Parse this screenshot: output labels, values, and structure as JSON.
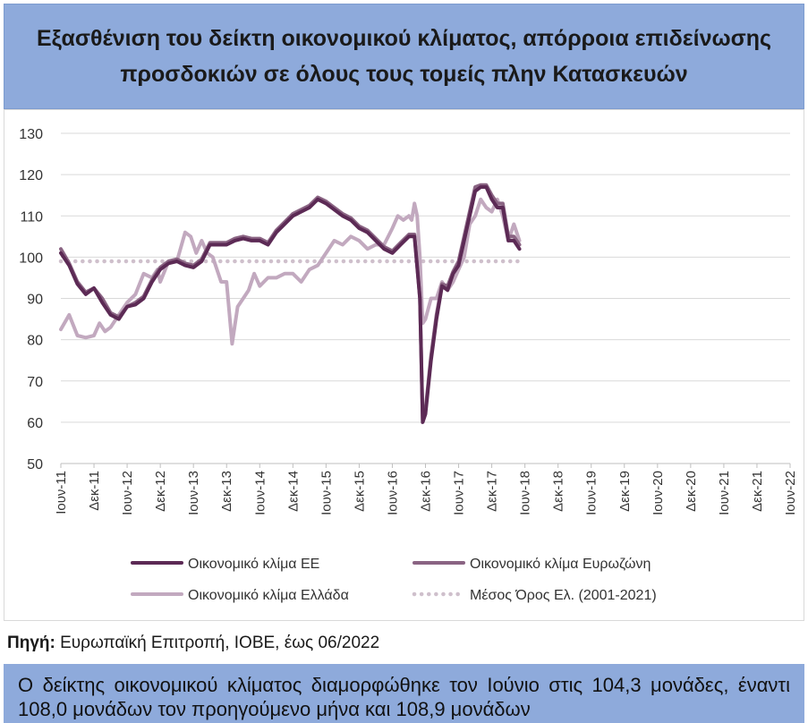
{
  "header": {
    "title": "Εξασθένιση του δείκτη οικονομικού κλίματος, απόρροια επιδείνωσης προσδοκιών σε όλους τους τομείς πλην Κατασκευών"
  },
  "source": {
    "label": "Πηγή:",
    "text": " Ευρωπαϊκή Επιτροπή, ΙΟΒΕ, έως 06/2022"
  },
  "note": {
    "text": "Ο δείκτης οικονομικού κλίματος διαμορφώθηκε τον Ιούνιο στις 104,3 μονάδες, έναντι 108,0 μονάδων τον προηγούμενο μήνα και 108,9 μονάδων"
  },
  "colors": {
    "eu": "#5c2a55",
    "eurozone": "#8a6483",
    "greece": "#c2a9bf",
    "average": "#cfc0cc"
  },
  "chart_data": {
    "type": "line",
    "title": "",
    "xlabel": "",
    "ylabel": "",
    "ylim": [
      50,
      130
    ],
    "yticks": [
      50,
      60,
      70,
      80,
      90,
      100,
      110,
      120,
      130
    ],
    "x_start": "Ιουν-11",
    "x_end": "Ιουν-22",
    "x_tick_labels": [
      "Ιουν-11",
      "Δεκ-11",
      "Ιουν-12",
      "Δεκ-12",
      "Ιουν-13",
      "Δεκ-13",
      "Ιουν-14",
      "Δεκ-14",
      "Ιουν-15",
      "Δεκ-15",
      "Ιουν-16",
      "Δεκ-16",
      "Ιουν-17",
      "Δεκ-17",
      "Ιουν-18",
      "Δεκ-18",
      "Ιουν-19",
      "Δεκ-19",
      "Ιουν-20",
      "Δεκ-20",
      "Ιουν-21",
      "Δεκ-21",
      "Ιουν-22"
    ],
    "series": [
      {
        "name": "Οικονομικό κλίμα ΕΕ",
        "key": "eu",
        "style": "solid",
        "points": [
          [
            0,
            101
          ],
          [
            3,
            98
          ],
          [
            6,
            93.5
          ],
          [
            9,
            91
          ],
          [
            12,
            92.5
          ],
          [
            15,
            89
          ],
          [
            18,
            86
          ],
          [
            21,
            85
          ],
          [
            24,
            88
          ],
          [
            27,
            88.5
          ],
          [
            30,
            90
          ],
          [
            33,
            94
          ],
          [
            36,
            97
          ],
          [
            39,
            98.5
          ],
          [
            42,
            99
          ],
          [
            45,
            98
          ],
          [
            48,
            97.5
          ],
          [
            51,
            99
          ],
          [
            54,
            103
          ],
          [
            57,
            103
          ],
          [
            60,
            103
          ],
          [
            63,
            104
          ],
          [
            66,
            104.5
          ],
          [
            69,
            104
          ],
          [
            72,
            104
          ],
          [
            75,
            103
          ],
          [
            78,
            106
          ],
          [
            81,
            108
          ],
          [
            84,
            110
          ],
          [
            87,
            111
          ],
          [
            90,
            112
          ],
          [
            93,
            114
          ],
          [
            96,
            113
          ],
          [
            99,
            111.5
          ],
          [
            102,
            110
          ],
          [
            105,
            109
          ],
          [
            108,
            107
          ],
          [
            111,
            106
          ],
          [
            114,
            104
          ],
          [
            117,
            102
          ],
          [
            120,
            101
          ],
          [
            123,
            103
          ],
          [
            126,
            105
          ],
          [
            128,
            105
          ],
          [
            130,
            90
          ],
          [
            131,
            60
          ],
          [
            132,
            62
          ],
          [
            134,
            75
          ],
          [
            136,
            85
          ],
          [
            138,
            93
          ],
          [
            140,
            92
          ],
          [
            142,
            96
          ],
          [
            144,
            98
          ],
          [
            146,
            104
          ],
          [
            148,
            110
          ],
          [
            150,
            116
          ],
          [
            152,
            117
          ],
          [
            154,
            117
          ],
          [
            156,
            114
          ],
          [
            158,
            112
          ],
          [
            160,
            112
          ],
          [
            162,
            104
          ],
          [
            164,
            104
          ],
          [
            166,
            102
          ]
        ]
      },
      {
        "name": "Οικονομικό κλίμα Ευρωζώνη",
        "key": "eurozone",
        "style": "solid",
        "points": [
          [
            0,
            102
          ],
          [
            3,
            98.5
          ],
          [
            6,
            94
          ],
          [
            9,
            91.5
          ],
          [
            12,
            92.5
          ],
          [
            15,
            90
          ],
          [
            18,
            86.5
          ],
          [
            21,
            85.5
          ],
          [
            24,
            88
          ],
          [
            27,
            89
          ],
          [
            30,
            90.5
          ],
          [
            33,
            94.5
          ],
          [
            36,
            97.5
          ],
          [
            39,
            99
          ],
          [
            42,
            99.5
          ],
          [
            45,
            98.5
          ],
          [
            48,
            98
          ],
          [
            51,
            99.5
          ],
          [
            54,
            103.5
          ],
          [
            57,
            103.5
          ],
          [
            60,
            103.5
          ],
          [
            63,
            104.5
          ],
          [
            66,
            105
          ],
          [
            69,
            104.5
          ],
          [
            72,
            104.5
          ],
          [
            75,
            103.5
          ],
          [
            78,
            106.5
          ],
          [
            81,
            108.5
          ],
          [
            84,
            110.5
          ],
          [
            87,
            111.5
          ],
          [
            90,
            112.5
          ],
          [
            93,
            114.5
          ],
          [
            96,
            113.5
          ],
          [
            99,
            112
          ],
          [
            102,
            110.5
          ],
          [
            105,
            109.5
          ],
          [
            108,
            107.5
          ],
          [
            111,
            106.5
          ],
          [
            114,
            104.5
          ],
          [
            117,
            102.5
          ],
          [
            120,
            101.5
          ],
          [
            123,
            103.5
          ],
          [
            126,
            105.5
          ],
          [
            128,
            105.5
          ],
          [
            130,
            90
          ],
          [
            131,
            60.5
          ],
          [
            132,
            63
          ],
          [
            134,
            76
          ],
          [
            136,
            86
          ],
          [
            138,
            93.5
          ],
          [
            140,
            93
          ],
          [
            142,
            96.5
          ],
          [
            144,
            99
          ],
          [
            146,
            105
          ],
          [
            148,
            111
          ],
          [
            150,
            117
          ],
          [
            152,
            117.5
          ],
          [
            154,
            117.5
          ],
          [
            156,
            115
          ],
          [
            158,
            113
          ],
          [
            160,
            113
          ],
          [
            162,
            105
          ],
          [
            164,
            105
          ],
          [
            166,
            103
          ]
        ]
      },
      {
        "name": "Οικονομικό κλίμα Ελλάδα",
        "key": "greece",
        "style": "solid",
        "points": [
          [
            0,
            82.5
          ],
          [
            3,
            86
          ],
          [
            6,
            81
          ],
          [
            9,
            80.5
          ],
          [
            12,
            81
          ],
          [
            14,
            84
          ],
          [
            16,
            82
          ],
          [
            18,
            83
          ],
          [
            21,
            86
          ],
          [
            24,
            89
          ],
          [
            27,
            91
          ],
          [
            30,
            96
          ],
          [
            33,
            95
          ],
          [
            35,
            97
          ],
          [
            36,
            94
          ],
          [
            39,
            99
          ],
          [
            42,
            99
          ],
          [
            45,
            106
          ],
          [
            47,
            105
          ],
          [
            49,
            101
          ],
          [
            51,
            104
          ],
          [
            53,
            101
          ],
          [
            55,
            100
          ],
          [
            58,
            94
          ],
          [
            60,
            94
          ],
          [
            62,
            79
          ],
          [
            64,
            88
          ],
          [
            66,
            90
          ],
          [
            68,
            92
          ],
          [
            70,
            96
          ],
          [
            72,
            93
          ],
          [
            75,
            95
          ],
          [
            78,
            95
          ],
          [
            81,
            96
          ],
          [
            84,
            96
          ],
          [
            87,
            94
          ],
          [
            90,
            97
          ],
          [
            93,
            98
          ],
          [
            96,
            101
          ],
          [
            99,
            104
          ],
          [
            102,
            103
          ],
          [
            105,
            105
          ],
          [
            108,
            104
          ],
          [
            111,
            102
          ],
          [
            114,
            103
          ],
          [
            117,
            103
          ],
          [
            120,
            107
          ],
          [
            122,
            110
          ],
          [
            124,
            109
          ],
          [
            126,
            110
          ],
          [
            127,
            109
          ],
          [
            128,
            113
          ],
          [
            129,
            110
          ],
          [
            130,
            100
          ],
          [
            131,
            84
          ],
          [
            132,
            85
          ],
          [
            134,
            90
          ],
          [
            136,
            90
          ],
          [
            138,
            94
          ],
          [
            140,
            92
          ],
          [
            142,
            94
          ],
          [
            144,
            97
          ],
          [
            146,
            100
          ],
          [
            148,
            108
          ],
          [
            150,
            110
          ],
          [
            152,
            114
          ],
          [
            154,
            112
          ],
          [
            156,
            111
          ],
          [
            158,
            114
          ],
          [
            160,
            110
          ],
          [
            162,
            104
          ],
          [
            164,
            108
          ],
          [
            166,
            104
          ]
        ]
      },
      {
        "name": "Μέσος Όρος Ελ. (2001-2021)",
        "key": "average",
        "style": "dotted",
        "points": [
          [
            0,
            99
          ],
          [
            166,
            99
          ]
        ]
      }
    ],
    "legend": "bottom"
  }
}
